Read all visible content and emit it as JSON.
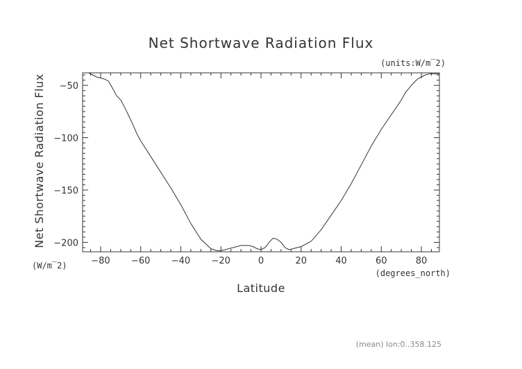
{
  "chart_data": {
    "type": "line",
    "title": "Net Shortwave Radiation Flux",
    "ylabel": "Net Shortwave Radiation Flux",
    "y_units_top": "(units:W/m^2)",
    "y_units_bottom": "(W/m^2)",
    "xlabel": "Latitude",
    "x_units": "(degrees_north)",
    "footnote": "(mean) lon:0..358.125",
    "xlim": [
      -89,
      89
    ],
    "ylim": [
      -209,
      -38
    ],
    "xticks": [
      -80,
      -60,
      -40,
      -20,
      0,
      20,
      40,
      60,
      80
    ],
    "yticks": [
      -200,
      -150,
      -100,
      -50
    ],
    "grid": false,
    "series": [
      {
        "name": "",
        "x": [
          -89,
          -86,
          -84,
          -82,
          -80,
          -78,
          -76,
          -74,
          -72,
          -70,
          -68,
          -66,
          -64,
          -62,
          -60,
          -55,
          -50,
          -45,
          -40,
          -35,
          -30,
          -25,
          -22,
          -20,
          -18,
          -16,
          -14,
          -12,
          -10,
          -8,
          -6,
          -4,
          -2,
          0,
          2,
          4,
          6,
          8,
          10,
          12,
          14,
          16,
          18,
          20,
          25,
          30,
          35,
          40,
          45,
          50,
          55,
          60,
          65,
          70,
          72,
          75,
          78,
          80,
          82,
          84,
          86,
          89
        ],
        "y": [
          -38,
          -38,
          -40,
          -42,
          -43,
          -44,
          -46,
          -53,
          -60,
          -64,
          -71,
          -79,
          -87,
          -96,
          -103,
          -118,
          -133,
          -148,
          -164,
          -182,
          -197,
          -206,
          -208,
          -208,
          -207,
          -206,
          -205,
          -204,
          -203,
          -203,
          -203,
          -204,
          -206,
          -207,
          -205,
          -200,
          -196,
          -197,
          -200,
          -205,
          -207,
          -206,
          -205,
          -204,
          -199,
          -188,
          -174,
          -160,
          -144,
          -126,
          -108,
          -92,
          -78,
          -64,
          -57,
          -50,
          -44,
          -42,
          -40,
          -39,
          -39,
          -39
        ]
      }
    ]
  }
}
